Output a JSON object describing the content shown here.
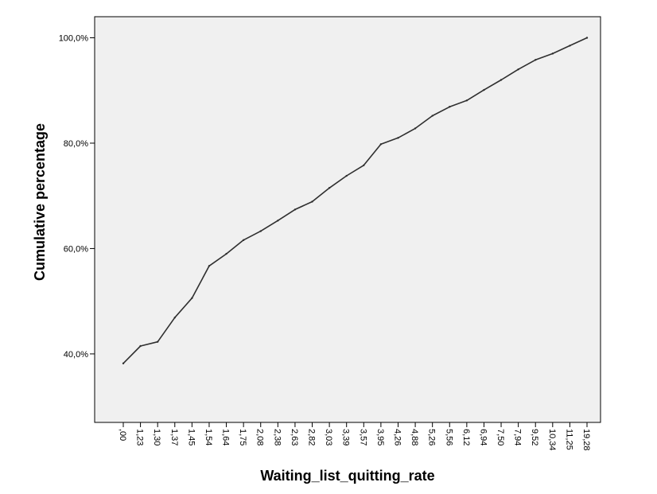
{
  "chart_data": {
    "type": "line",
    "title": "",
    "xlabel": "Waiting_list_quitting_rate",
    "ylabel": "Cumulative percentage",
    "x_tick_labels": [
      ",00",
      "1,23",
      "1,30",
      "1,37",
      "1,45",
      "1,54",
      "1,64",
      "1,75",
      "2,08",
      "2,38",
      "2,63",
      "2,82",
      "3,03",
      "3,39",
      "3,57",
      "3,95",
      "4,26",
      "4,88",
      "5,26",
      "5,56",
      "6,12",
      "6,94",
      "7,50",
      "7,94",
      "9,52",
      "10,34",
      "11,25",
      "19,28"
    ],
    "y_ticks": [
      40,
      60,
      80,
      100
    ],
    "y_tick_labels": [
      "40,0%",
      "60,0%",
      "80,0%",
      "100,0%"
    ],
    "ylim": [
      27,
      104
    ],
    "x_scale": "ordinal",
    "grid": false,
    "colors": {
      "plot_background": "#f0f0f0",
      "line": "#2f2f2f",
      "axis": "#000000"
    },
    "series": [
      {
        "values": [
          38.2,
          41.5,
          42.3,
          46.9,
          50.6,
          56.7,
          59.0,
          61.6,
          63.3,
          65.3,
          67.4,
          68.9,
          71.5,
          73.8,
          75.8,
          79.8,
          81.0,
          82.8,
          85.2,
          86.9,
          88.1,
          90.1,
          92.0,
          94.0,
          95.8,
          97.0,
          98.5,
          100.0
        ]
      }
    ]
  }
}
